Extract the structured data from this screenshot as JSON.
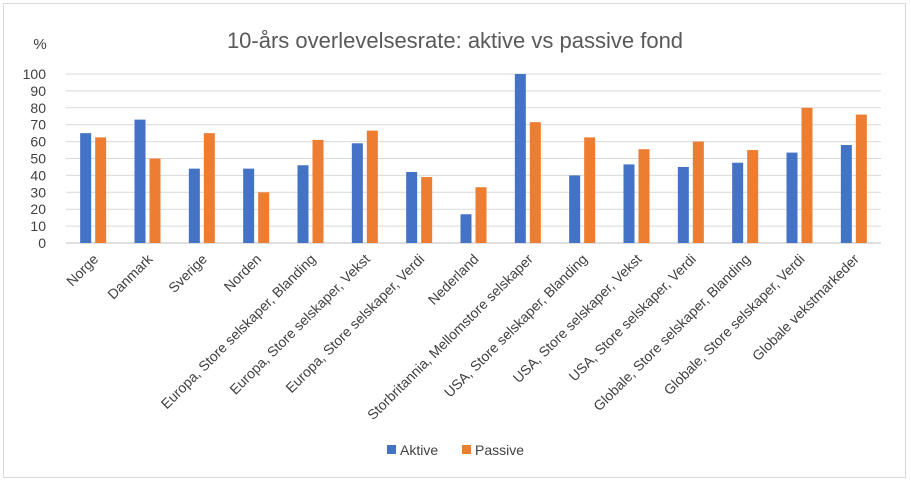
{
  "chart_data": {
    "type": "bar",
    "title": "10-års overlevelsesrate: aktive vs passive fond",
    "ylabel": "%",
    "xlabel": "",
    "ylim": [
      0,
      100
    ],
    "yticks": [
      0,
      10,
      20,
      30,
      40,
      50,
      60,
      70,
      80,
      90,
      100
    ],
    "grid": true,
    "legend_position": "bottom",
    "categories": [
      "Norge",
      "Danmark",
      "Sverige",
      "Norden",
      "Europa, Store selskaper, Blanding",
      "Europa, Store selskaper, Vekst",
      "Europa, Store selskaper, Verdi",
      "Nederland",
      "Storbritannia, Mellomstore selskaper",
      "USA, Store selskaper, Blanding",
      "USA, Store selskaper, Vekst",
      "USA, Store selskaper, Verdi",
      "Globale, Store selskaper, Blanding",
      "Globale, Store selskaper, Verdi",
      "Globale vekstmarkeder"
    ],
    "series": [
      {
        "name": "Aktive",
        "color": "#4472c4",
        "values": [
          65,
          73,
          44,
          44,
          46,
          59,
          42,
          17,
          100,
          40,
          46.5,
          45,
          47.5,
          53.5,
          58
        ]
      },
      {
        "name": "Passive",
        "color": "#ed7d31",
        "values": [
          62.5,
          50,
          65,
          30,
          61,
          66.5,
          39,
          33,
          71.5,
          62.5,
          55.5,
          60,
          55,
          80,
          76
        ]
      }
    ]
  }
}
